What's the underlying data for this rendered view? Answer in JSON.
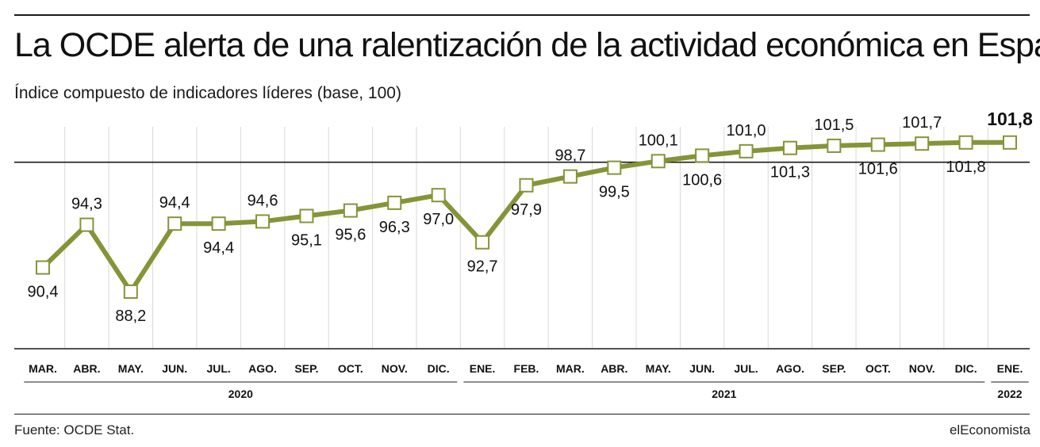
{
  "header": {
    "title": "La OCDE alerta de una ralentización de la actividad económica en España",
    "subtitle": "Índice compuesto de indicadores líderes (base, 100)"
  },
  "footer": {
    "source": "Fuente: OCDE Stat.",
    "brand": "elEconomista"
  },
  "colors": {
    "line": "#869438",
    "marker_fill": "#ffffff",
    "grid": "#d9d9d9",
    "axis": "#1a1a1a"
  },
  "chart_data": {
    "type": "line",
    "title": "La OCDE alerta de una ralentización de la actividad económica en España",
    "subtitle": "Índice compuesto de indicadores líderes (base, 100)",
    "categories": [
      "MAR.",
      "ABR.",
      "MAY.",
      "JUN.",
      "JUL.",
      "AGO.",
      "SEP.",
      "OCT.",
      "NOV.",
      "DIC.",
      "ENE.",
      "FEB.",
      "MAR.",
      "ABR.",
      "MAY.",
      "JUN.",
      "JUL.",
      "AGO.",
      "SEP.",
      "OCT.",
      "NOV.",
      "DIC.",
      "ENE."
    ],
    "values": [
      90.4,
      94.3,
      88.2,
      94.4,
      94.4,
      94.6,
      95.1,
      95.6,
      96.3,
      97.0,
      92.7,
      97.9,
      98.7,
      99.5,
      100.1,
      100.6,
      101.0,
      101.3,
      101.5,
      101.6,
      101.7,
      101.8,
      101.8
    ],
    "data_labels": [
      "90,4",
      "94,3",
      "88,2",
      "94,4",
      "94,4",
      "94,6",
      "95,1",
      "95,6",
      "96,3",
      "97,0",
      "92,7",
      "97,9",
      "98,7",
      "99,5",
      "100,1",
      "100,6",
      "101,0",
      "101,3",
      "101,5",
      "101,6",
      "101,7",
      "101,8",
      "101,8"
    ],
    "label_positions": [
      "below",
      "above",
      "below",
      "above",
      "below",
      "above",
      "below",
      "below",
      "below",
      "below",
      "below",
      "below",
      "above",
      "below",
      "above",
      "below",
      "above",
      "below",
      "above",
      "below",
      "above",
      "below",
      "above"
    ],
    "highlight_last": true,
    "year_groups": [
      {
        "label": "2020",
        "start": 0,
        "end": 9
      },
      {
        "label": "2021",
        "start": 10,
        "end": 21
      },
      {
        "label": "2022",
        "start": 22,
        "end": 22
      }
    ],
    "reference_line": 100,
    "ylim": [
      86,
      104
    ],
    "xlabel": "",
    "ylabel": "",
    "grid": "vertical"
  }
}
